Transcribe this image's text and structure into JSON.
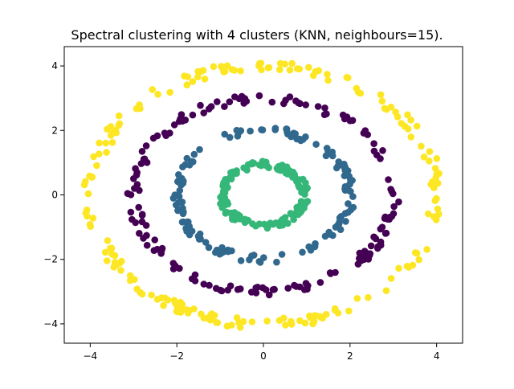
{
  "chart_data": {
    "type": "scatter",
    "title": "Spectral clustering with 4 clusters (KNN, neighbours=15).",
    "xlabel": "",
    "ylabel": "",
    "xlim": [
      -4.6,
      4.6
    ],
    "ylim": [
      -4.6,
      4.6
    ],
    "xticks": [
      -4,
      -2,
      0,
      2,
      4
    ],
    "yticks": [
      -4,
      -2,
      0,
      2,
      4
    ],
    "xtick_labels": [
      "−4",
      "−2",
      "0",
      "2",
      "4"
    ],
    "ytick_labels": [
      "−4",
      "−2",
      "0",
      "2",
      "4"
    ],
    "grid": false,
    "legend": "none",
    "series": [
      {
        "color": "#fde725",
        "ring_radius": 4.0,
        "jitter": 0.16,
        "count": 200
      },
      {
        "color": "#440154",
        "ring_radius": 3.0,
        "jitter": 0.14,
        "count": 160
      },
      {
        "color": "#31688e",
        "ring_radius": 2.0,
        "jitter": 0.12,
        "count": 140
      },
      {
        "color": "#35b779",
        "ring_radius": 0.95,
        "jitter": 0.1,
        "count": 150
      }
    ]
  }
}
